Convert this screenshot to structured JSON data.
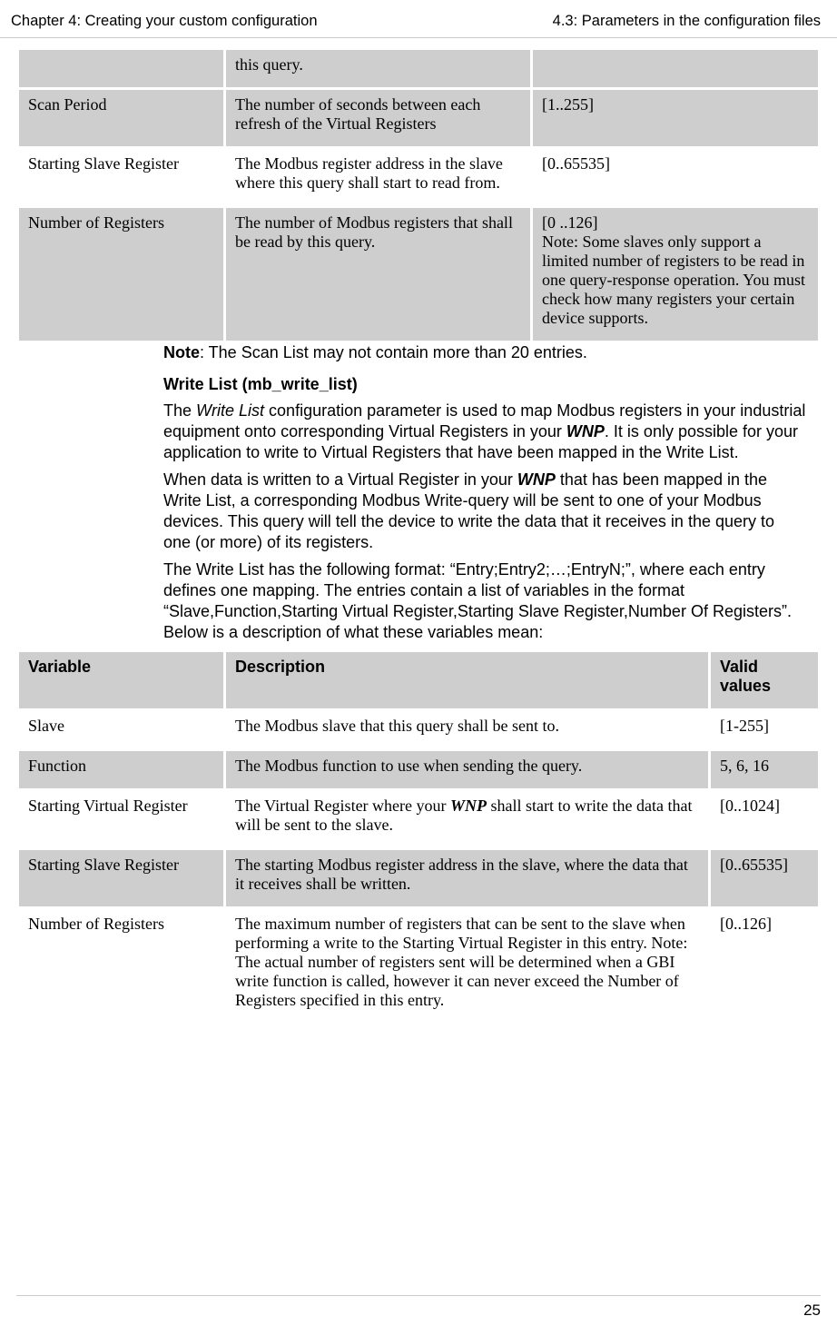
{
  "header": {
    "left": "Chapter 4: Creating your custom configuration",
    "right": "4.3: Parameters in the configuration files"
  },
  "table1": {
    "rows": [
      {
        "variable": "",
        "description": "this query.",
        "valid": "",
        "shade": "gray"
      },
      {
        "variable": "Scan Period",
        "description": "The number of seconds between each refresh of the Virtual Registers",
        "valid": "[1..255]",
        "shade": "gray"
      },
      {
        "variable": "Starting Slave Register",
        "description": "The Modbus register address in the slave where this query shall start to read from.",
        "valid": "[0..65535]",
        "shade": "white"
      },
      {
        "variable": "Number of Registers",
        "description": "The number of Modbus registers that shall be read by this query.",
        "valid": "[0 ..126]\nNote: Some slaves only support a limited number of registers to be read in one query-response operation. You must check how many registers your certain device supports.",
        "shade": "gray"
      }
    ]
  },
  "note_bold": "Note",
  "note_rest": ": The Scan List may not contain more than 20 entries.",
  "subhead": "Write List (mb_write_list)",
  "para1_pre": "The ",
  "para1_italic": "Write List",
  "para1_mid": " configuration parameter is used to map Modbus registers in your industrial equipment onto corresponding Virtual Registers in your ",
  "para1_bold": "WNP",
  "para1_post": ". It is only possible for your application to write to Virtual Registers that have been mapped in the Write List.",
  "para2_pre": "When data is written to a Virtual Register in your ",
  "para2_bold": "WNP",
  "para2_post": " that has been mapped in the Write List, a corresponding Modbus Write-query will be sent to one of your Modbus devices. This query will tell the device to write the data that it receives in the query to one (or more) of its registers.",
  "para3": "The Write List has the following format: “Entry;Entry2;…;EntryN;”, where each entry defines one mapping. The entries contain a list of variables in the format “Slave,Function,Starting Virtual Register,Starting Slave Register,Number Of Registers”. Below is a description of what these variables mean:",
  "table2": {
    "header": {
      "c1": "Variable",
      "c2": "Description",
      "c3": "Valid values"
    },
    "rows": [
      {
        "variable": "Slave",
        "desc_pre": "The Modbus slave that this query shall be sent to.",
        "desc_bold": "",
        "desc_post": "",
        "valid": "[1-255]",
        "shade": "white"
      },
      {
        "variable": "Function",
        "desc_pre": "The Modbus function to use when sending the query.",
        "desc_bold": "",
        "desc_post": "",
        "valid": "5, 6, 16",
        "shade": "gray"
      },
      {
        "variable": "Starting Virtual Register",
        "desc_pre": "The Virtual Register where your ",
        "desc_bold": "WNP",
        "desc_post": " shall start to write the data that will be sent to the slave.",
        "valid": "[0..1024]",
        "shade": "white"
      },
      {
        "variable": "Starting Slave Register",
        "desc_pre": "The starting Modbus register address in the slave, where the data that it receives shall be written.",
        "desc_bold": "",
        "desc_post": "",
        "valid": "[0..65535]",
        "shade": "gray"
      },
      {
        "variable": "Number of Registers",
        "desc_pre": "The maximum number of registers that can be sent to the slave when performing a write to the Starting Virtual Register in this entry. Note: The actual number of registers sent will be determined when a GBI write function is called, however it can never exceed the Number of Registers specified in this entry.",
        "desc_bold": "",
        "desc_post": "",
        "valid": "[0..126]",
        "shade": "white"
      }
    ]
  },
  "footer": {
    "page": "25"
  }
}
